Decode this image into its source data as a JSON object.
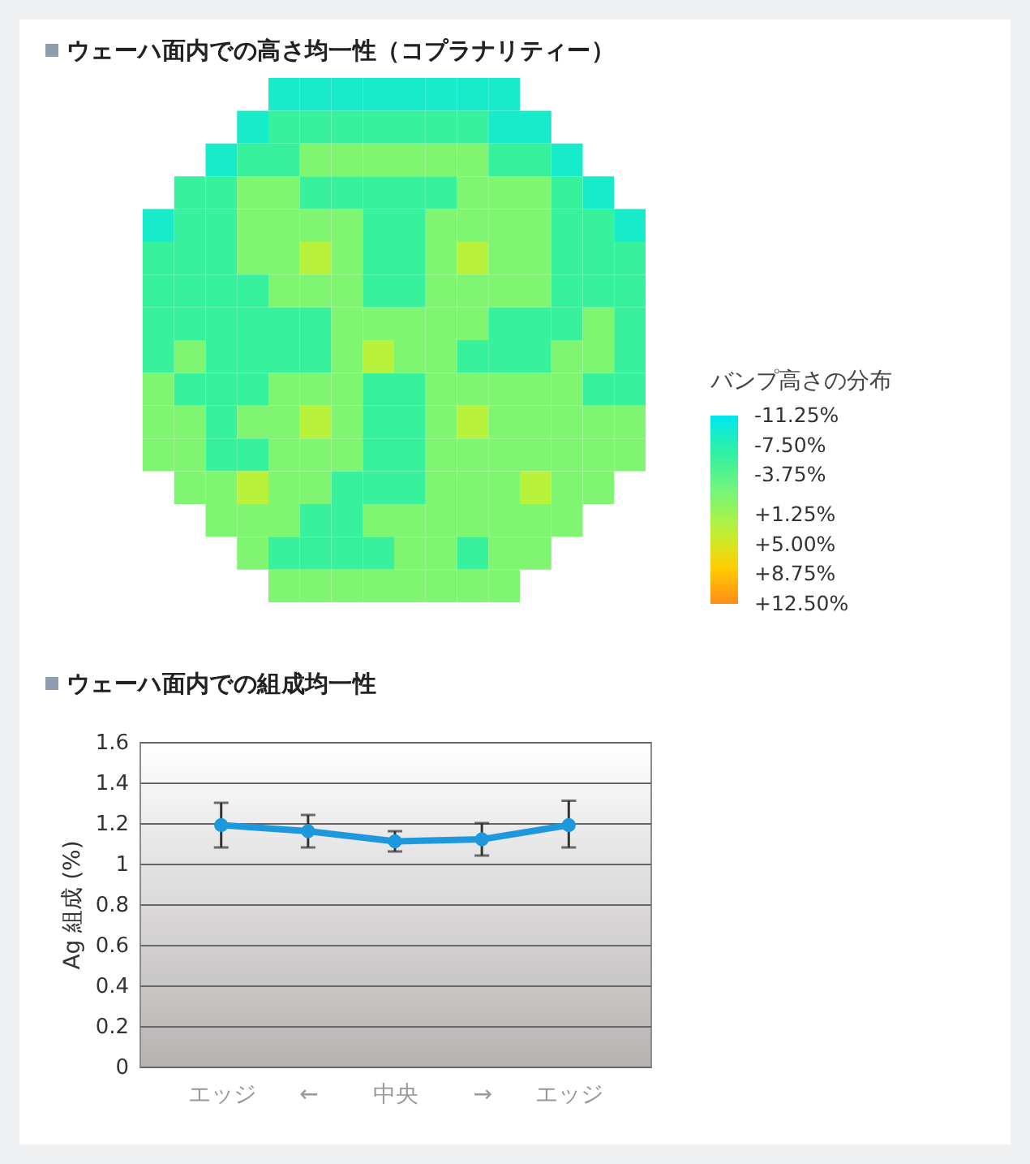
{
  "chart_data": [
    {
      "type": "heatmap",
      "title": "ウェーハ面内での高さ均一性（コプラナリティー）",
      "clabel": "バンプ高さの分布",
      "tick_labels": false,
      "categories": [
        null,
        null,
        null,
        null,
        null,
        null,
        null,
        null,
        null,
        null,
        null,
        null,
        null,
        null,
        null,
        null
      ],
      "y_categories": [
        null,
        null,
        null,
        null,
        null,
        null,
        null,
        null,
        null,
        null,
        null,
        null,
        null,
        null,
        null,
        null
      ],
      "cells": [
        [
          null,
          null,
          null,
          null,
          -9,
          -9,
          -9,
          -9,
          -9,
          -9,
          -9,
          -9,
          null,
          null,
          null,
          null
        ],
        [
          null,
          null,
          null,
          -9,
          -6,
          -6,
          -6,
          -6,
          -6,
          -6,
          -6,
          -9,
          -9,
          null,
          null,
          null
        ],
        [
          null,
          null,
          -9,
          -6,
          -6,
          -1,
          -1,
          -1,
          -1,
          -1,
          -1,
          -6,
          -6,
          -9,
          null,
          null
        ],
        [
          null,
          -6,
          -6,
          -1,
          -1,
          -6,
          -6,
          -6,
          -6,
          -6,
          -1,
          -1,
          -1,
          -6,
          -9,
          null
        ],
        [
          -9,
          -6,
          -6,
          -1,
          -1,
          -1,
          -1,
          -6,
          -6,
          -1,
          -1,
          -1,
          -1,
          -6,
          -6,
          -9
        ],
        [
          -6,
          -6,
          -6,
          -1,
          -1,
          3,
          -1,
          -6,
          -6,
          -1,
          3,
          -1,
          -1,
          -6,
          -6,
          -6
        ],
        [
          -6,
          -6,
          -6,
          -6,
          -1,
          -1,
          -1,
          -6,
          -6,
          -1,
          -1,
          -1,
          -1,
          -6,
          -6,
          -6
        ],
        [
          -6,
          -6,
          -6,
          -6,
          -6,
          -6,
          -1,
          -1,
          -1,
          -1,
          -1,
          -6,
          -6,
          -6,
          -1,
          -6
        ],
        [
          -6,
          -1,
          -6,
          -6,
          -6,
          -6,
          -1,
          3,
          -1,
          -1,
          -6,
          -6,
          -6,
          -1,
          -1,
          -6
        ],
        [
          -1,
          -6,
          -6,
          -6,
          -1,
          -1,
          -1,
          -6,
          -6,
          -1,
          -1,
          -1,
          -1,
          -1,
          -6,
          -6
        ],
        [
          -1,
          -1,
          -6,
          -1,
          -1,
          3,
          -1,
          -6,
          -6,
          -1,
          3,
          -1,
          -1,
          -1,
          -1,
          -1
        ],
        [
          -1,
          -1,
          -6,
          -6,
          -1,
          -1,
          -1,
          -6,
          -6,
          -1,
          -1,
          -1,
          -1,
          -1,
          -1,
          -1
        ],
        [
          null,
          -1,
          -1,
          3,
          -1,
          -1,
          -6,
          -6,
          -6,
          -1,
          -1,
          -1,
          3,
          -1,
          -1,
          null
        ],
        [
          null,
          null,
          -1,
          -1,
          -1,
          -6,
          -6,
          -1,
          -1,
          -1,
          -1,
          -1,
          -1,
          -1,
          null,
          null
        ],
        [
          null,
          null,
          null,
          -1,
          -6,
          -6,
          -6,
          -6,
          -1,
          -1,
          -6,
          -1,
          -1,
          null,
          null,
          null
        ],
        [
          null,
          null,
          null,
          null,
          -1,
          -1,
          -1,
          -1,
          -1,
          -1,
          -1,
          -1,
          null,
          null,
          null,
          null
        ]
      ],
      "clim": [
        -11.25,
        12.5
      ],
      "cticks": [
        {
          "value": -11.25,
          "label": "-11.25%"
        },
        {
          "value": -7.5,
          "label": "-7.50%"
        },
        {
          "value": -3.75,
          "label": "-3.75%"
        },
        {
          "value": 1.25,
          "label": "+1.25%"
        },
        {
          "value": 5,
          "label": "+5.00%"
        },
        {
          "value": 8.75,
          "label": "+8.75%"
        },
        {
          "value": 12.5,
          "label": "+12.50%"
        }
      ],
      "colors": [
        "#00e6f0",
        "#30f0a0",
        "#74f57c",
        "#b8f23a",
        "#ffd000",
        "#ff8c1a"
      ]
    },
    {
      "type": "line",
      "title": "ウェーハ面内での組成均一性",
      "ylabel": "Ag 組成 (%)",
      "categories": [
        "エッジ",
        "←",
        "中央",
        "→",
        "エッジ"
      ],
      "values": [
        1.19,
        1.16,
        1.11,
        1.12,
        1.19
      ],
      "errors": [
        [
          1.08,
          1.3
        ],
        [
          1.08,
          1.24
        ],
        [
          1.06,
          1.16
        ],
        [
          1.04,
          1.2
        ],
        [
          1.08,
          1.31
        ]
      ],
      "color": "#1e98dc",
      "marker": "circle",
      "grid": "y",
      "ylim": [
        0,
        1.6
      ],
      "yticks": [
        0,
        0.2,
        0.4,
        0.6,
        0.8,
        1,
        1.2,
        1.4,
        1.6
      ]
    }
  ]
}
